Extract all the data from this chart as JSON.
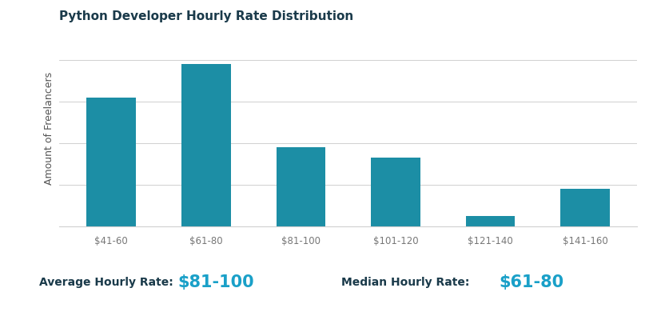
{
  "title": "Python Developer Hourly Rate Distribution",
  "categories": [
    "$41-60",
    "$61-80",
    "$81-100",
    "$101-120",
    "$121-140",
    "$141-160"
  ],
  "values": [
    62,
    78,
    38,
    33,
    5,
    18
  ],
  "bar_color": "#1c8ea5",
  "ylabel": "Amount of Freelancers",
  "background_color": "#ffffff",
  "grid_color": "#d0d0d0",
  "title_color": "#1a3a4a",
  "title_fontsize": 11,
  "ylabel_fontsize": 9,
  "ylabel_color": "#555555",
  "tick_color": "#777777",
  "annotation_label1": "Average Hourly Rate:",
  "annotation_value1": "$81-100",
  "annotation_label2": "Median Hourly Rate:",
  "annotation_value2": "$61-80",
  "annotation_label_color": "#1a3a4a",
  "annotation_value_color": "#1aa0c8",
  "annotation_fontsize_label": 10,
  "annotation_fontsize_value": 15
}
